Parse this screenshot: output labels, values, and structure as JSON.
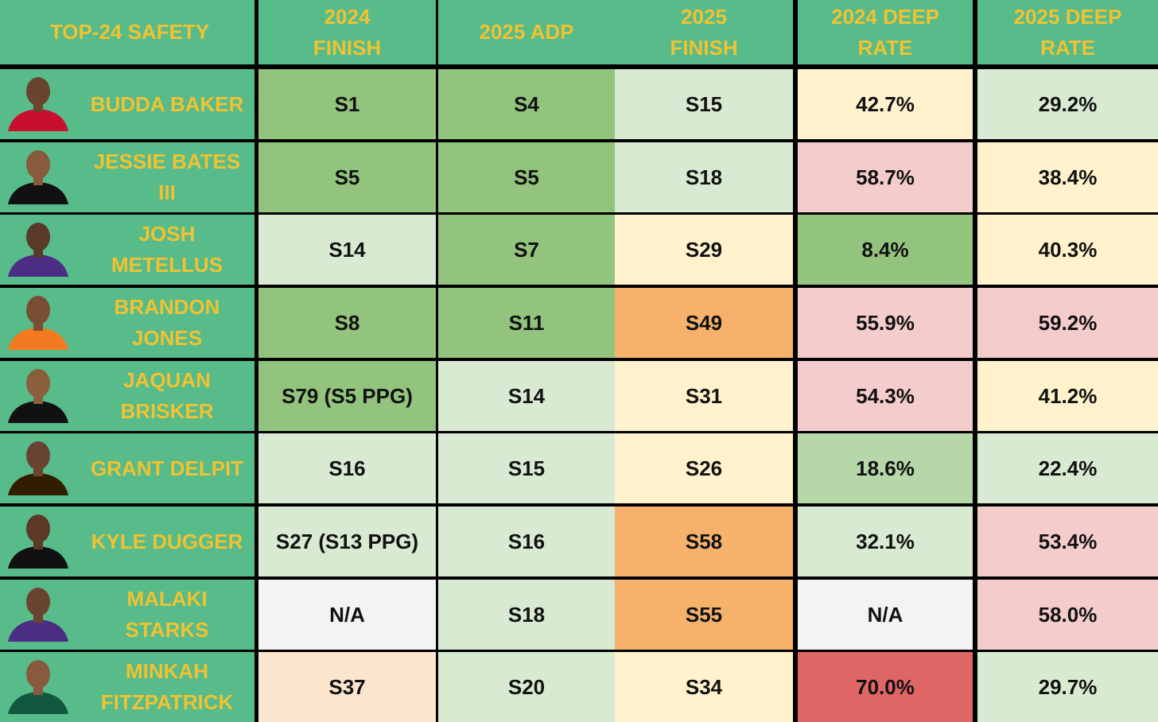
{
  "table": {
    "header": [
      "TOP-24 SAFETY",
      "2024 FINISH",
      "2025 ADP",
      "2025 FINISH",
      "2024 DEEP RATE",
      "2025 DEEP RATE"
    ],
    "rows": [
      [
        "BUDDA BAKER",
        "S1",
        "S4",
        "S15",
        "42.7%",
        "29.2%"
      ],
      [
        "JESSIE BATES III",
        "S5",
        "S5",
        "S18",
        "58.7%",
        "38.4%"
      ],
      [
        "JOSH METELLUS",
        "S14",
        "S7",
        "S29",
        "8.4%",
        "40.3%"
      ],
      [
        "BRANDON JONES",
        "S8",
        "S11",
        "S49",
        "55.9%",
        "59.2%"
      ],
      [
        "JAQUAN BRISKER",
        "S79 (S5 PPG)",
        "S14",
        "S31",
        "54.3%",
        "41.2%"
      ],
      [
        "GRANT DELPIT",
        "S16",
        "S15",
        "S26",
        "18.6%",
        "22.4%"
      ],
      [
        "KYLE DUGGER",
        "S27 (S13 PPG)",
        "S16",
        "S58",
        "32.1%",
        "53.4%"
      ],
      [
        "MALAKI STARKS",
        "N/A",
        "S18",
        "S55",
        "N/A",
        "58.0%"
      ],
      [
        "MINKAH FITZPATRICK",
        "S37",
        "S20",
        "S34",
        "70.0%",
        "29.7%"
      ]
    ]
  }
}
